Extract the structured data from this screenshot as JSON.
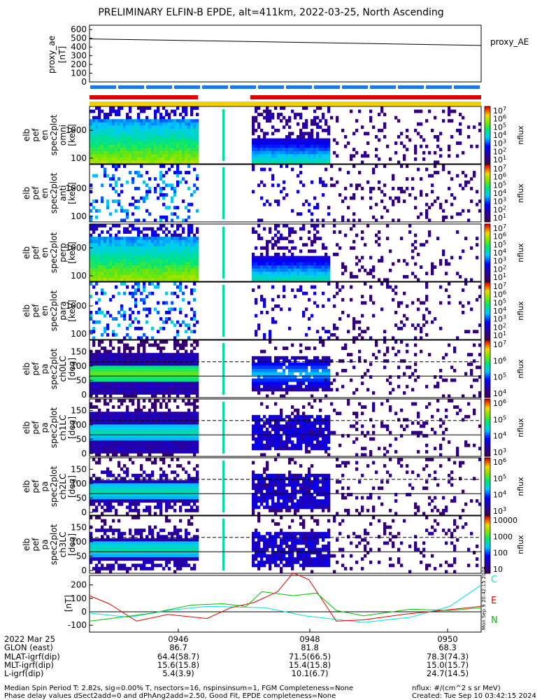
{
  "title": "PRELIMINARY ELFIN-B EPDE, alt=411km, 2022-03-25, North Ascending",
  "proxy": {
    "ylabel": "proxy_ae",
    "units": "[nT]",
    "legend": "proxy_AE",
    "yticks": [
      "600",
      "500",
      "400",
      "300",
      "200",
      "100",
      "0"
    ],
    "values": {
      "start": 493,
      "end": 418
    }
  },
  "panels": [
    {
      "name": "omni",
      "labels": [
        "elb",
        "pef",
        "en",
        "spec2plot",
        "omni",
        "[keV]"
      ],
      "yticks": [
        "1000",
        "100"
      ],
      "cbar": "nflux",
      "cbar_ticks": [
        "10^7",
        "10^6",
        "10^5",
        "10^4",
        "10^3",
        "10^2",
        "10^1"
      ]
    },
    {
      "name": "anti",
      "labels": [
        "elb",
        "pef",
        "en",
        "spec2plot",
        "anti",
        "[keV]"
      ],
      "yticks": [
        "1000",
        "100"
      ],
      "cbar": "nflux",
      "cbar_ticks": [
        "10^7",
        "10^6",
        "10^5",
        "10^4",
        "10^3",
        "10^2",
        "10^1"
      ]
    },
    {
      "name": "perp",
      "labels": [
        "elb",
        "pef",
        "en",
        "spec2plot",
        "perp",
        "[keV]"
      ],
      "yticks": [
        "1000",
        "100"
      ],
      "cbar": "nflux",
      "cbar_ticks": [
        "10^7",
        "10^6",
        "10^5",
        "10^4",
        "10^3",
        "10^2",
        "10^1"
      ]
    },
    {
      "name": "para",
      "labels": [
        "elb",
        "pef",
        "en",
        "spec2plot",
        "para",
        "[keV]"
      ],
      "yticks": [
        "1000",
        "100"
      ],
      "cbar": "nflux",
      "cbar_ticks": [
        "10^7",
        "10^6",
        "10^5",
        "10^4",
        "10^3",
        "10^2",
        "10^1"
      ]
    },
    {
      "name": "ch0LC",
      "labels": [
        "elb",
        "pef",
        "pa",
        "spec2plot",
        "ch0LC",
        "[deg]"
      ],
      "yticks": [
        "150",
        "100",
        "50",
        "0"
      ],
      "cbar": "nflux",
      "cbar_ticks": [
        "10^7",
        "10^6",
        "10^5",
        "10^4"
      ]
    },
    {
      "name": "ch1LC",
      "labels": [
        "elb",
        "pef",
        "pa",
        "spec2plot",
        "ch1LC",
        "[deg]"
      ],
      "yticks": [
        "150",
        "100",
        "50",
        "0"
      ],
      "cbar": "nflux",
      "cbar_ticks": [
        "10^6",
        "10^5",
        "10^4",
        "10^3"
      ]
    },
    {
      "name": "ch2LC",
      "labels": [
        "elb",
        "pef",
        "pa",
        "spec2plot",
        "ch2LC",
        "[deg]"
      ],
      "yticks": [
        "150",
        "100",
        "50",
        "0"
      ],
      "cbar": "nflux",
      "cbar_ticks": [
        "10^6",
        "10^5",
        "10^4",
        "10^3"
      ]
    },
    {
      "name": "ch3LC",
      "labels": [
        "elb",
        "pef",
        "pa",
        "spec2plot",
        "ch3LC",
        "[deg]"
      ],
      "yticks": [
        "150",
        "100",
        "50",
        "0"
      ],
      "cbar": "nflux",
      "cbar_ticks": [
        "10000",
        "1000",
        "100",
        "10"
      ]
    }
  ],
  "field": {
    "units": "[nT]",
    "yticks": [
      "200",
      "100",
      "0",
      "-100"
    ],
    "legend": [
      {
        "label": "C",
        "color": "#00e0e0"
      },
      {
        "label": "E",
        "color": "#e00000"
      },
      {
        "label": "N",
        "color": "#00c000"
      }
    ],
    "stamp": "Mon Sep  9 20:42:15 2024"
  },
  "ephemeris": {
    "rows": [
      {
        "label": "2022 Mar 25",
        "values": [
          "0946",
          "0948",
          "0950"
        ]
      },
      {
        "label": "GLON (east)",
        "values": [
          "86.7",
          "81.8",
          "68.3"
        ]
      },
      {
        "label": "MLAT-igrf(dip)",
        "values": [
          "64.4(58.7)",
          "71.5(66.5)",
          "78.3(74.3)"
        ]
      },
      {
        "label": "MLT-igrf(dip)",
        "values": [
          "15.6(15.8)",
          "15.4(15.8)",
          "15.0(15.7)"
        ]
      },
      {
        "label": "L-igrf(dip)",
        "values": [
          "5.4(3.9)",
          "10.1(6.7)",
          "24.7(14.5)"
        ]
      }
    ]
  },
  "footer": {
    "line1": "Median Spin Period T: 2.82s, sig=0.00% T, nsectors=16, nspinsinsum=1, FGM Completeness=None",
    "line2": "Phase delay values dSect2add=0 and dPhAng2add=2.50, Good Fit, EPDE completeness=None",
    "units": "nflux: #/(cm^2 s sr MeV)",
    "created": "Created: Tue Sep 10 03:42:15 2024"
  },
  "colors": {
    "science_bar": "#e00000",
    "subsolar_bar": "#f0d000",
    "spin_bar": "#1e78e0"
  }
}
